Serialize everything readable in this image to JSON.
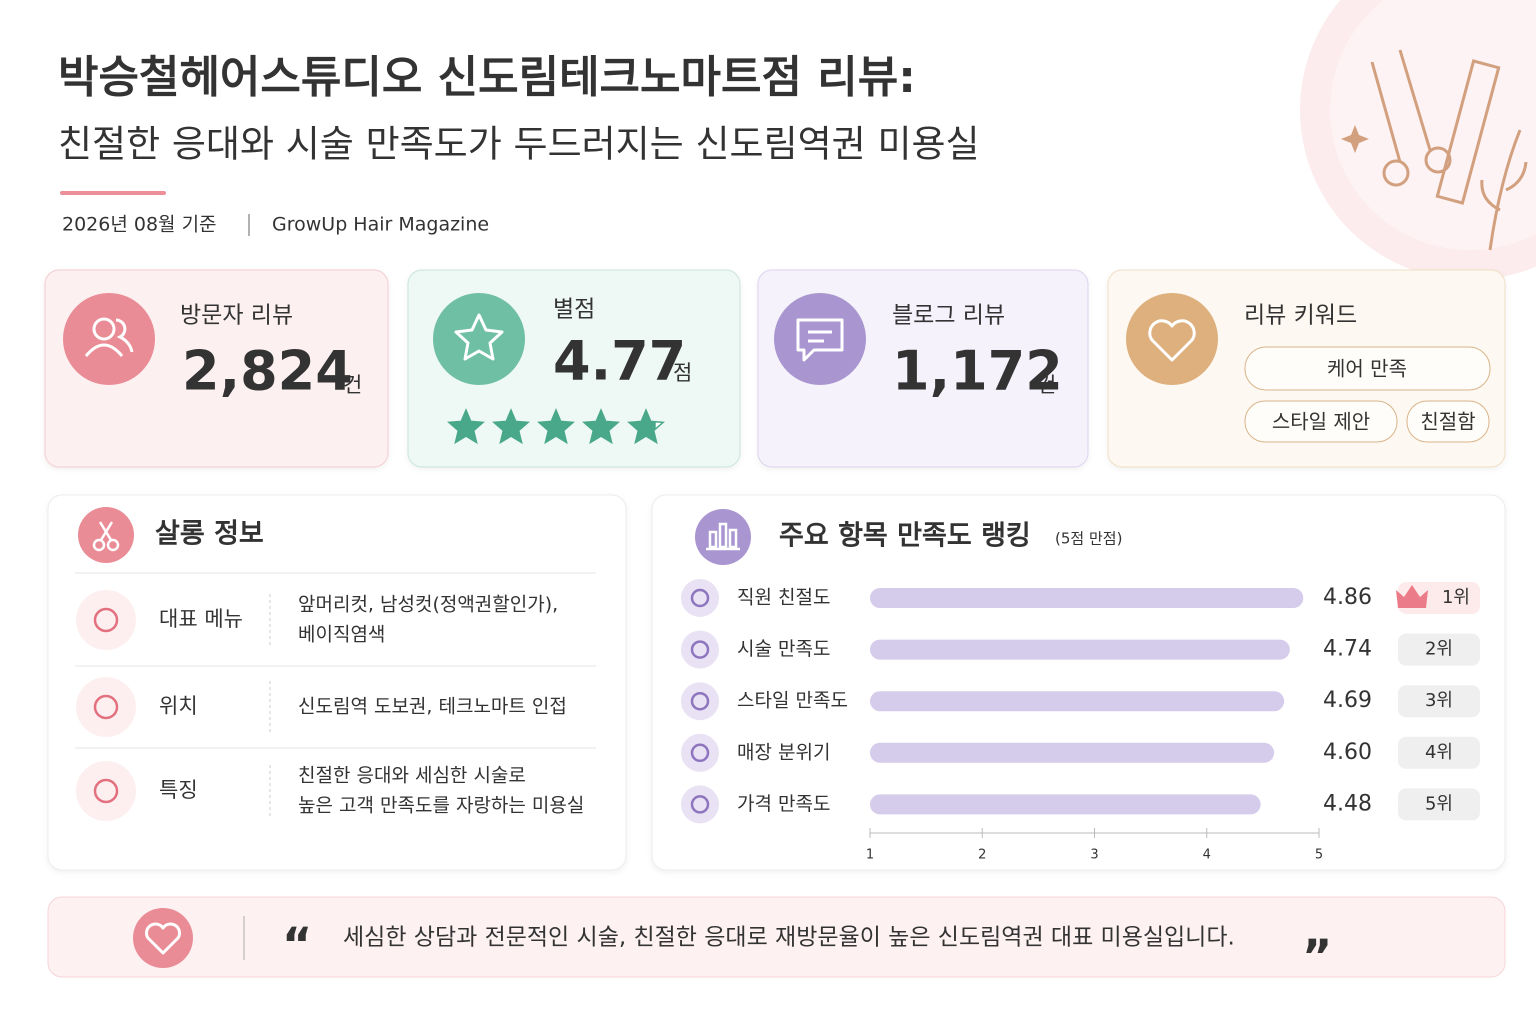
{
  "header": {
    "title_line1": "박승철헤어스튜디오 신도림테크노마트점 리뷰:",
    "title_line2": "친절한 응대와 시술 만족도가 두드러지는 신도림역권 미용실",
    "date": "2026년 08월 기준",
    "source": "GrowUp Hair Magazine"
  },
  "stats": [
    {
      "label": "방문자 리뷰",
      "value": "2,824",
      "unit": "건"
    },
    {
      "label": "별점",
      "value": 4.77,
      "unit": "점"
    },
    {
      "label": "블로그 리뷰",
      "value": "1,172",
      "unit": "건"
    }
  ],
  "keywords": {
    "label": "리뷰 키워드",
    "items": [
      "케어 만족",
      "스타일 제안",
      "친절함"
    ]
  },
  "salon": {
    "title": "살롱 정보",
    "rows": [
      {
        "label": "대표 메뉴",
        "lines": [
          "앞머리컷, 남성컷(정액권할인가),",
          "베이직염색"
        ]
      },
      {
        "label": "위치",
        "lines": [
          "신도림역 도보권, 테크노마트 인접"
        ]
      },
      {
        "label": "특징",
        "lines": [
          "친절한 응대와 세심한 시술로",
          "높은 고객 만족도를 자랑하는 미용실"
        ]
      }
    ]
  },
  "chart_data": {
    "type": "bar",
    "orientation": "horizontal",
    "title": "주요 항목 만족도 랭킹",
    "subtitle": "(5점 만점)",
    "categories": [
      "직원 친절도",
      "시술 만족도",
      "스타일 만족도",
      "매장 분위기",
      "가격 만족도"
    ],
    "values": [
      4.86,
      4.74,
      4.69,
      4.6,
      4.48
    ],
    "value_labels": [
      "4.86",
      "4.74",
      "4.69",
      "4.60",
      "4.48"
    ],
    "ranks": [
      "1위",
      "2위",
      "3위",
      "4위",
      "5위"
    ],
    "color": "#d5cbea",
    "xlim": [
      1,
      5
    ],
    "xticks": [
      1,
      2,
      3,
      4,
      5
    ]
  },
  "quote": {
    "open": "“",
    "text": "세심한 상담과 전문적인 시술, 친절한 응대로 재방문율이 높은 신도림역권 대표 미용실입니다.",
    "close": "”"
  }
}
